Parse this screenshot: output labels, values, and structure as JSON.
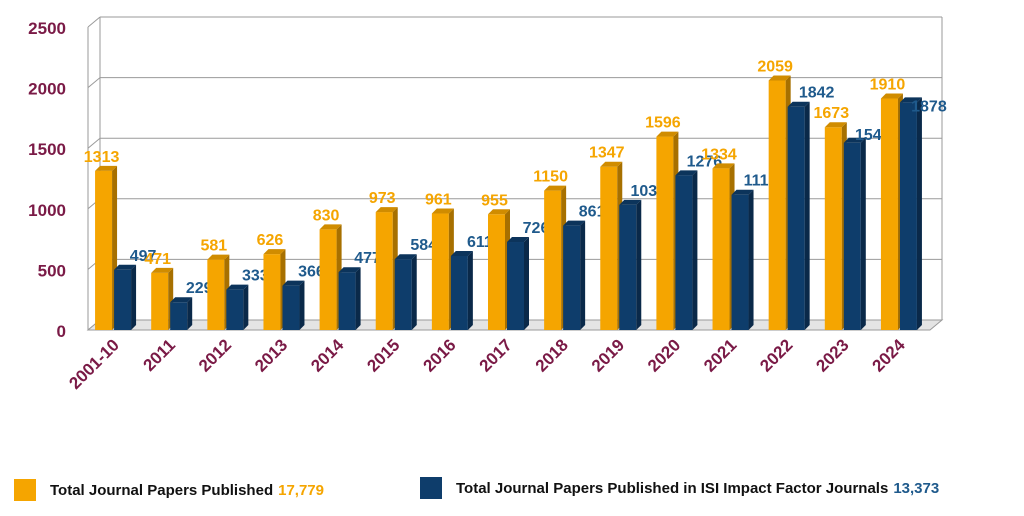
{
  "chart_data": {
    "type": "bar",
    "categories": [
      "2001-10",
      "2011",
      "2012",
      "2013",
      "2014",
      "2015",
      "2016",
      "2017",
      "2018",
      "2019",
      "2020",
      "2021",
      "2022",
      "2023",
      "2024"
    ],
    "series": [
      {
        "name": "Total Journal Papers Published",
        "total": "17,779",
        "color": "#f5a500",
        "values": [
          1313,
          471,
          581,
          626,
          830,
          973,
          961,
          955,
          1150,
          1347,
          1596,
          1334,
          2059,
          1673,
          1910
        ]
      },
      {
        "name": "Total Journal Papers Published in ISI Impact Factor Journals",
        "total": "13,373",
        "color": "#0e3d6b",
        "values": [
          497,
          229,
          333,
          366,
          477,
          584,
          611,
          726,
          861,
          1032,
          1276,
          1116,
          1842,
          1545,
          1878
        ]
      }
    ],
    "ylim": [
      0,
      2500
    ],
    "yticks": [
      0,
      500,
      1000,
      1500,
      2000,
      2500
    ],
    "grid": true,
    "legend_position": "bottom",
    "tick_label_color": "#7a1a46"
  }
}
